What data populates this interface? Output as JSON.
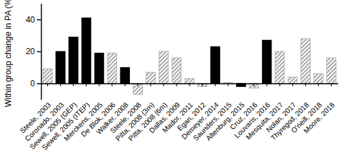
{
  "chart_data": {
    "type": "bar",
    "y_label": "Within group change in PA (%)",
    "categories": [
      "Steele, 2003",
      "Coronado, 2003",
      "Sewell, 2005 (GEP)",
      "Sewell, 2005 (ITEP)",
      "Merckens, 2005",
      "De Blok, 2006",
      "Walker, 2008",
      "Steele, 2008",
      "Pitta, 2008 (3m)",
      "Pitta, 2008 (6m)",
      "Dallas, 2009",
      "Mador, 2011",
      "Egan, 2012",
      "Demeyer, 2014",
      "Saunders, 2015",
      "Altenburg, 2015",
      "Cruz, 2016",
      "Louvaris, 2016",
      "Mesquita, 2017",
      "Nolan, 2017",
      "Thyregod, 2018",
      "O'neill, 2018",
      "Moore, 2018"
    ],
    "values": [
      9,
      20,
      29,
      41,
      19,
      19,
      10,
      -7,
      7,
      20,
      16,
      3,
      -2,
      23,
      0.5,
      -2,
      -3,
      27,
      20,
      4,
      28,
      6,
      16
    ],
    "colors": [
      "#a6a6a6",
      "#000000",
      "#000000",
      "#000000",
      "#000000",
      "#a6a6a6",
      "#000000",
      "#a6a6a6",
      "#a6a6a6",
      "#a6a6a6",
      "#a6a6a6",
      "#a6a6a6",
      "#a6a6a6",
      "#000000",
      "#a6a6a6",
      "#000000",
      "#a6a6a6",
      "#000000",
      "#a6a6a6",
      "#a6a6a6",
      "#a6a6a6",
      "#a6a6a6",
      "#a6a6a6"
    ],
    "ylim": [
      -10,
      50
    ],
    "yticks": [
      0,
      20,
      40
    ],
    "grid": false
  }
}
